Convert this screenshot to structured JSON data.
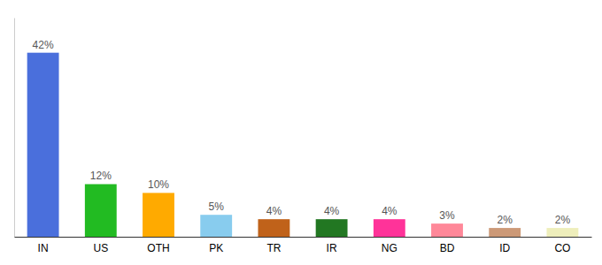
{
  "chart_data": {
    "type": "bar",
    "categories": [
      "IN",
      "US",
      "OTH",
      "PK",
      "TR",
      "IR",
      "NG",
      "BD",
      "ID",
      "CO"
    ],
    "values": [
      42,
      12,
      10,
      5,
      4,
      4,
      4,
      3,
      2,
      2
    ],
    "value_labels": [
      "42%",
      "12%",
      "10%",
      "5%",
      "4%",
      "4%",
      "4%",
      "3%",
      "2%",
      "2%"
    ],
    "colors": [
      "#4a6fdc",
      "#22bb22",
      "#ffaa00",
      "#88ccee",
      "#c0621a",
      "#227722",
      "#ff3399",
      "#ff8899",
      "#cc9977",
      "#eeeebb"
    ],
    "ylim": [
      0,
      50
    ],
    "data_labels": true,
    "tick_labels": "x",
    "grid": false
  }
}
